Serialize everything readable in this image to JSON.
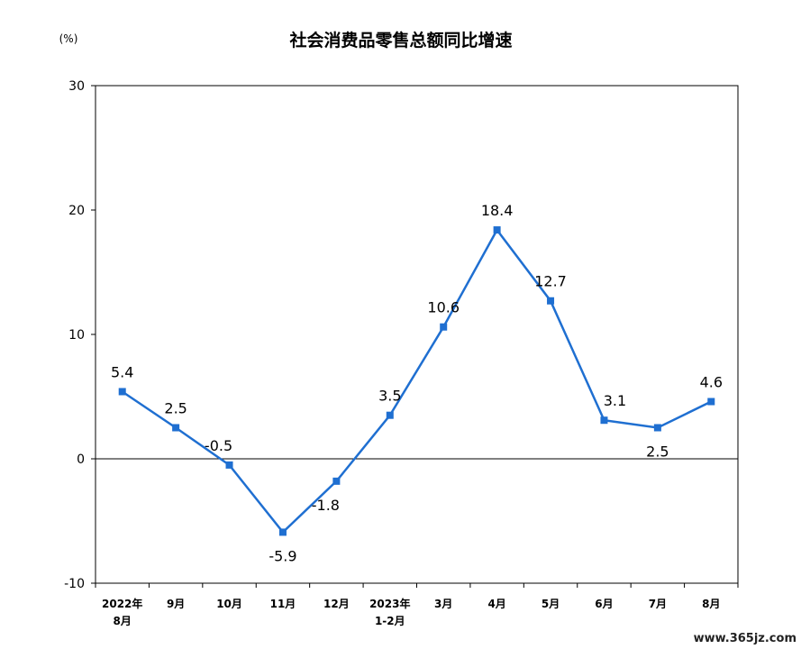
{
  "chart_data": {
    "type": "line",
    "title": "社会消费品零售总额同比增速",
    "unit_label": "(%)",
    "ylim": [
      -10,
      30
    ],
    "y_ticks": [
      "30",
      "20",
      "10",
      "0",
      "-10"
    ],
    "y_tick_values": [
      30,
      20,
      10,
      0,
      -10
    ],
    "categories": [
      {
        "line1": "2022年",
        "line2": "8月"
      },
      {
        "line1": "9月",
        "line2": ""
      },
      {
        "line1": "10月",
        "line2": ""
      },
      {
        "line1": "11月",
        "line2": ""
      },
      {
        "line1": "12月",
        "line2": ""
      },
      {
        "line1": "2023年",
        "line2": "1-2月"
      },
      {
        "line1": "3月",
        "line2": ""
      },
      {
        "line1": "4月",
        "line2": ""
      },
      {
        "line1": "5月",
        "line2": ""
      },
      {
        "line1": "6月",
        "line2": ""
      },
      {
        "line1": "7月",
        "line2": ""
      },
      {
        "line1": "8月",
        "line2": ""
      }
    ],
    "values": [
      5.4,
      2.5,
      -0.5,
      -5.9,
      -1.8,
      3.5,
      10.6,
      18.4,
      12.7,
      3.1,
      2.5,
      4.6
    ],
    "value_labels": [
      "5.4",
      "2.5",
      "-0.5",
      "-5.9",
      "-1.8",
      "3.5",
      "10.6",
      "18.4",
      "12.7",
      "3.1",
      "2.5",
      "4.6"
    ],
    "grid": false,
    "legend": "none",
    "line_color": "#1f6fd1"
  },
  "watermark": "www.365jz.com"
}
